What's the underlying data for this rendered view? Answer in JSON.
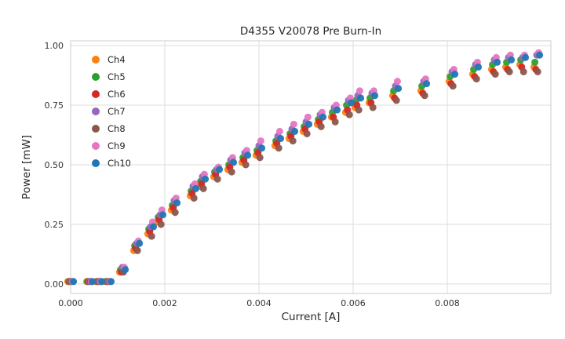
{
  "chart_data": {
    "type": "scatter",
    "title": "D4355 V20078 Pre Burn-In",
    "xlabel": "Current [A]",
    "ylabel": "Power [mW]",
    "xlim": [
      0,
      0.0102
    ],
    "ylim": [
      -0.04,
      1.02
    ],
    "grid": true,
    "legend_position": "upper left",
    "xticks": {
      "values": [
        0,
        0.002,
        0.004,
        0.006,
        0.008
      ],
      "labels": [
        "0.000",
        "0.002",
        "0.004",
        "0.006",
        "0.008"
      ]
    },
    "yticks": {
      "values": [
        0,
        0.25,
        0.5,
        0.75,
        1.0
      ],
      "labels": [
        "0.00",
        "0.25",
        "0.50",
        "0.75",
        "1.00"
      ]
    },
    "x": [
      0.0,
      0.0004,
      0.0006,
      0.0008,
      0.0011,
      0.0014,
      0.0017,
      0.0019,
      0.0022,
      0.0026,
      0.0028,
      0.0031,
      0.0034,
      0.0037,
      0.004,
      0.0044,
      0.0047,
      0.005,
      0.0053,
      0.0056,
      0.0059,
      0.0061,
      0.0064,
      0.0069,
      0.0075,
      0.0081,
      0.0086,
      0.009,
      0.0093,
      0.0096,
      0.0099
    ],
    "series": [
      {
        "name": "Ch4",
        "color": "#ff7f0e",
        "values": [
          0.01,
          0.01,
          0.01,
          0.01,
          0.05,
          0.14,
          0.21,
          0.26,
          0.31,
          0.37,
          0.41,
          0.45,
          0.48,
          0.51,
          0.54,
          0.58,
          0.61,
          0.64,
          0.67,
          0.7,
          0.72,
          0.74,
          0.76,
          0.79,
          0.81,
          0.85,
          0.88,
          0.9,
          0.91,
          0.92,
          0.91
        ]
      },
      {
        "name": "Ch5",
        "color": "#2ca02c",
        "values": [
          0.01,
          0.01,
          0.01,
          0.01,
          0.06,
          0.16,
          0.23,
          0.28,
          0.33,
          0.39,
          0.43,
          0.47,
          0.5,
          0.53,
          0.56,
          0.6,
          0.63,
          0.66,
          0.69,
          0.72,
          0.75,
          0.77,
          0.78,
          0.81,
          0.83,
          0.87,
          0.9,
          0.92,
          0.93,
          0.94,
          0.93
        ]
      },
      {
        "name": "Ch6",
        "color": "#d62728",
        "values": [
          0.01,
          0.01,
          0.01,
          0.01,
          0.05,
          0.15,
          0.22,
          0.27,
          0.32,
          0.38,
          0.42,
          0.46,
          0.49,
          0.52,
          0.55,
          0.59,
          0.62,
          0.65,
          0.68,
          0.7,
          0.73,
          0.75,
          0.76,
          0.78,
          0.8,
          0.84,
          0.87,
          0.89,
          0.9,
          0.91,
          0.9
        ]
      },
      {
        "name": "Ch7",
        "color": "#9467bd",
        "values": [
          0.01,
          0.01,
          0.01,
          0.01,
          0.07,
          0.17,
          0.24,
          0.29,
          0.35,
          0.41,
          0.45,
          0.48,
          0.52,
          0.55,
          0.58,
          0.62,
          0.65,
          0.68,
          0.71,
          0.74,
          0.77,
          0.79,
          0.8,
          0.83,
          0.85,
          0.89,
          0.92,
          0.94,
          0.95,
          0.95,
          0.96
        ]
      },
      {
        "name": "Ch8",
        "color": "#8c564b",
        "values": [
          0.01,
          0.01,
          0.01,
          0.01,
          0.05,
          0.14,
          0.2,
          0.25,
          0.3,
          0.36,
          0.4,
          0.44,
          0.47,
          0.5,
          0.53,
          0.57,
          0.6,
          0.63,
          0.66,
          0.68,
          0.71,
          0.73,
          0.74,
          0.77,
          0.79,
          0.83,
          0.86,
          0.88,
          0.89,
          0.89,
          0.89
        ]
      },
      {
        "name": "Ch9",
        "color": "#e377c2",
        "values": [
          0.01,
          0.01,
          0.01,
          0.01,
          0.07,
          0.18,
          0.26,
          0.31,
          0.36,
          0.42,
          0.46,
          0.49,
          0.53,
          0.56,
          0.6,
          0.64,
          0.67,
          0.7,
          0.72,
          0.75,
          0.78,
          0.81,
          0.81,
          0.85,
          0.86,
          0.9,
          0.93,
          0.95,
          0.96,
          0.96,
          0.97
        ]
      },
      {
        "name": "Ch10",
        "color": "#1f77b4",
        "values": [
          0.01,
          0.01,
          0.01,
          0.01,
          0.06,
          0.17,
          0.24,
          0.29,
          0.34,
          0.4,
          0.44,
          0.48,
          0.51,
          0.54,
          0.57,
          0.61,
          0.64,
          0.67,
          0.7,
          0.73,
          0.76,
          0.78,
          0.79,
          0.82,
          0.84,
          0.88,
          0.91,
          0.93,
          0.94,
          0.95,
          0.96
        ]
      }
    ],
    "style": {
      "grid_color": "#dcdcdc",
      "border_color": "#cccccc",
      "background": "#ffffff",
      "marker_radius": 4.5
    }
  }
}
